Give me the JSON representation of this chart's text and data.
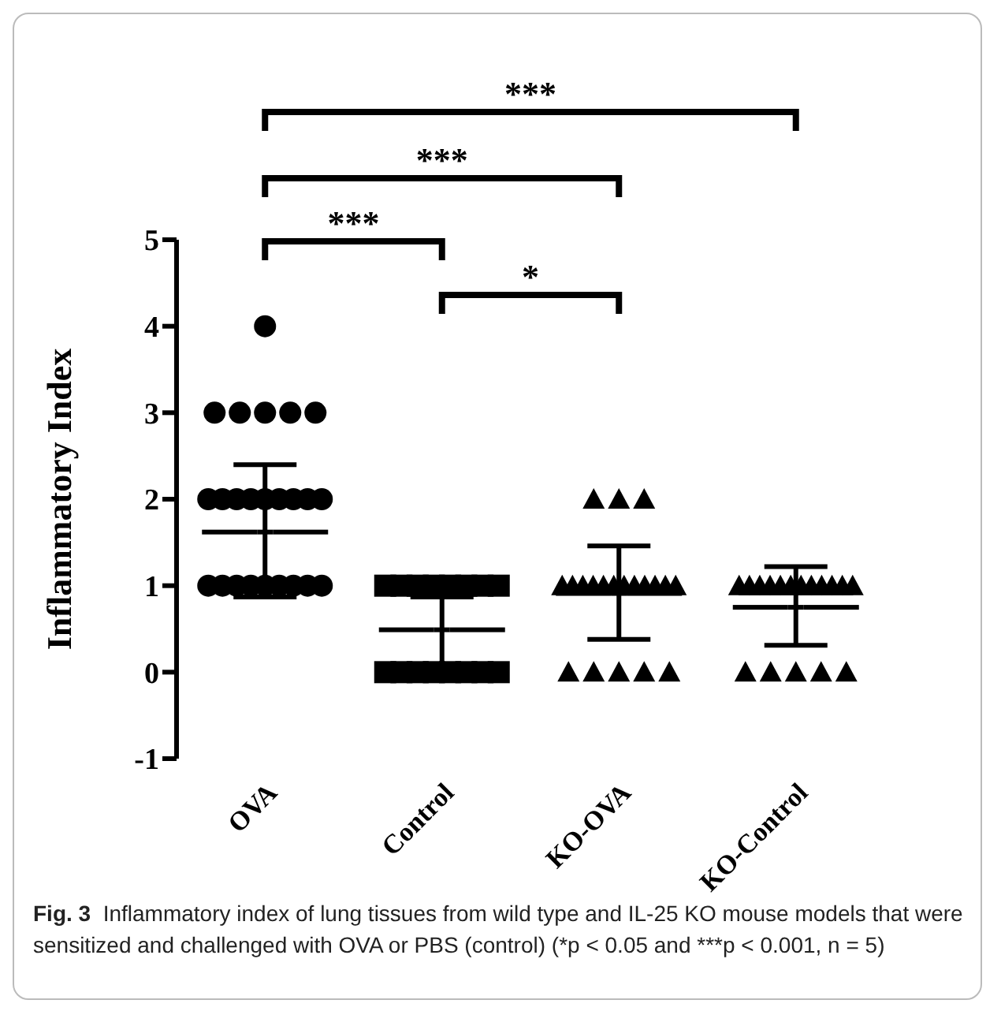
{
  "chart_data": {
    "type": "scatter",
    "categories": [
      "OVA",
      "Control",
      "KO-OVA",
      "KO-Control"
    ],
    "ylabel": "Inflammatory Index",
    "ylim": [
      -1,
      5
    ],
    "yticks": [
      -1,
      0,
      1,
      2,
      3,
      4,
      5
    ],
    "series": [
      {
        "color": "#000000",
        "marker": "circle",
        "x": [
          "OVA",
          "OVA",
          "OVA",
          "OVA",
          "OVA",
          "OVA",
          "OVA",
          "OVA",
          "OVA",
          "OVA",
          "OVA",
          "OVA",
          "OVA",
          "OVA",
          "OVA",
          "OVA",
          "OVA",
          "OVA",
          "OVA",
          "OVA",
          "OVA",
          "OVA",
          "OVA",
          "OVA"
        ],
        "values": [
          4,
          3,
          3,
          3,
          3,
          3,
          2,
          2,
          2,
          2,
          2,
          2,
          2,
          2,
          2,
          1,
          1,
          1,
          1,
          1,
          1,
          1,
          1,
          1
        ]
      },
      {
        "color": "#000000",
        "marker": "square",
        "x": [
          "Control",
          "Control",
          "Control",
          "Control",
          "Control",
          "Control",
          "Control",
          "Control",
          "Control",
          "Control",
          "Control",
          "Control",
          "Control",
          "Control",
          "Control",
          "Control"
        ],
        "values": [
          1,
          1,
          1,
          1,
          1,
          1,
          1,
          1,
          0,
          0,
          0,
          0,
          0,
          0,
          0,
          0
        ]
      },
      {
        "color": "#000000",
        "marker": "triangle",
        "x": [
          "KO-OVA",
          "KO-OVA",
          "KO-OVA",
          "KO-OVA",
          "KO-OVA",
          "KO-OVA",
          "KO-OVA",
          "KO-OVA",
          "KO-OVA",
          "KO-OVA",
          "KO-OVA",
          "KO-OVA",
          "KO-OVA",
          "KO-OVA",
          "KO-OVA",
          "KO-OVA",
          "KO-OVA",
          "KO-OVA",
          "KO-OVA",
          "KO-OVA"
        ],
        "values": [
          2,
          2,
          2,
          1,
          1,
          1,
          1,
          1,
          1,
          1,
          1,
          1,
          1,
          1,
          1,
          0,
          0,
          0,
          0,
          0
        ]
      },
      {
        "color": "#000000",
        "marker": "triangle",
        "x": [
          "KO-Control",
          "KO-Control",
          "KO-Control",
          "KO-Control",
          "KO-Control",
          "KO-Control",
          "KO-Control",
          "KO-Control",
          "KO-Control",
          "KO-Control",
          "KO-Control",
          "KO-Control",
          "KO-Control",
          "KO-Control",
          "KO-Control",
          "KO-Control",
          "KO-Control"
        ],
        "values": [
          1,
          1,
          1,
          1,
          1,
          1,
          1,
          1,
          1,
          1,
          1,
          1,
          0,
          0,
          0,
          0,
          0
        ]
      },
      {
        "color": "#000000",
        "x": [
          "OVA",
          "Control",
          "KO-OVA",
          "KO-Control"
        ],
        "values": [
          1.62,
          0.49,
          0.91,
          0.75
        ],
        "errors": [
          [
            0.87,
            2.4
          ],
          [
            0.07,
            0.87
          ],
          [
            0.38,
            1.46
          ],
          [
            0.31,
            1.22
          ]
        ]
      }
    ],
    "annotations": [
      "***",
      "***",
      "***",
      "*",
      "Fig. 3",
      "Inflammatory index of lung tissues from wild type and IL-25 KO mouse models that were sensitized and challenged with OVA or PBS (control) (*p < 0.05 and ***p < 0.001, n = 5)"
    ]
  }
}
